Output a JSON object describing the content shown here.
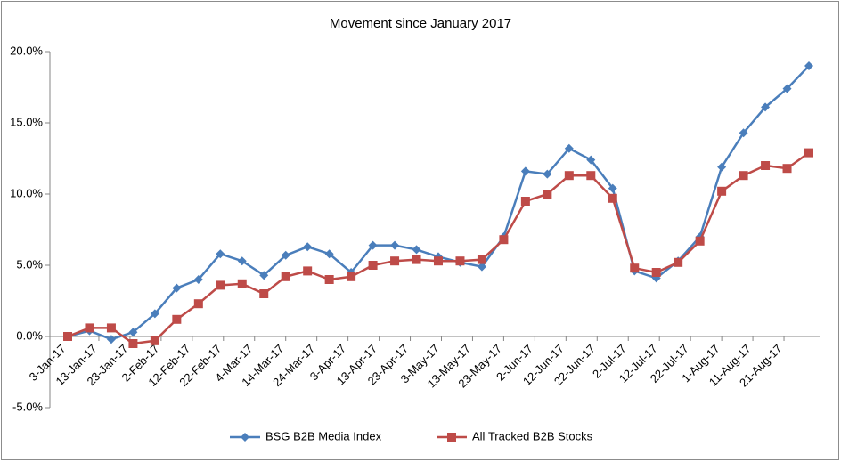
{
  "chart_data": {
    "type": "line",
    "title": "Movement since January 2017",
    "x": [
      "3-Jan-17",
      "10-Jan-17",
      "17-Jan-17",
      "24-Jan-17",
      "31-Jan-17",
      "7-Feb-17",
      "14-Feb-17",
      "21-Feb-17",
      "28-Feb-17",
      "7-Mar-17",
      "14-Mar-17",
      "21-Mar-17",
      "28-Mar-17",
      "4-Apr-17",
      "11-Apr-17",
      "18-Apr-17",
      "25-Apr-17",
      "2-May-17",
      "9-May-17",
      "16-May-17",
      "23-May-17",
      "30-May-17",
      "6-Jun-17",
      "13-Jun-17",
      "20-Jun-17",
      "27-Jun-17",
      "4-Jul-17",
      "11-Jul-17",
      "18-Jul-17",
      "25-Jul-17",
      "1-Aug-17",
      "8-Aug-17",
      "15-Aug-17",
      "22-Aug-17",
      "29-Aug-17"
    ],
    "series": [
      {
        "name": "BSG B2B Media Index",
        "color": "#4a7ebb",
        "marker": "diamond",
        "values": [
          0.0,
          0.4,
          -0.2,
          0.3,
          1.6,
          3.4,
          4.0,
          5.8,
          5.3,
          4.3,
          5.7,
          6.3,
          5.8,
          4.5,
          6.4,
          6.4,
          6.1,
          5.6,
          5.2,
          4.9,
          7.0,
          11.6,
          11.4,
          13.2,
          12.4,
          10.4,
          4.6,
          4.1,
          5.3,
          7.0,
          11.9,
          14.3,
          16.1,
          17.4,
          19.0
        ]
      },
      {
        "name": "All Tracked B2B Stocks",
        "color": "#be4b48",
        "marker": "square",
        "values": [
          0.0,
          0.6,
          0.6,
          -0.5,
          -0.3,
          1.2,
          2.3,
          3.6,
          3.7,
          3.0,
          4.2,
          4.6,
          4.0,
          4.2,
          5.0,
          5.3,
          5.4,
          5.3,
          5.3,
          5.4,
          6.8,
          9.5,
          10.0,
          11.3,
          11.3,
          9.7,
          4.8,
          4.5,
          5.2,
          6.7,
          10.2,
          11.3,
          12.0,
          11.8,
          12.9
        ]
      }
    ],
    "xticks": [
      "3-Jan-17",
      "13-Jan-17",
      "23-Jan-17",
      "2-Feb-17",
      "12-Feb-17",
      "22-Feb-17",
      "4-Mar-17",
      "14-Mar-17",
      "24-Mar-17",
      "3-Apr-17",
      "13-Apr-17",
      "23-Apr-17",
      "3-May-17",
      "13-May-17",
      "23-May-17",
      "2-Jun-17",
      "12-Jun-17",
      "22-Jun-17",
      "2-Jul-17",
      "12-Jul-17",
      "22-Jul-17",
      "1-Aug-17",
      "11-Aug-17",
      "21-Aug-17"
    ],
    "ylim": [
      -5,
      20
    ],
    "yticks": [
      {
        "value": -5,
        "label": "-5.0%"
      },
      {
        "value": 0,
        "label": "0.0%"
      },
      {
        "value": 5,
        "label": "5.0%"
      },
      {
        "value": 10,
        "label": "10.0%"
      },
      {
        "value": 15,
        "label": "15.0%"
      },
      {
        "value": 20,
        "label": "20.0%"
      }
    ],
    "grid": false,
    "legend": "bottom"
  }
}
